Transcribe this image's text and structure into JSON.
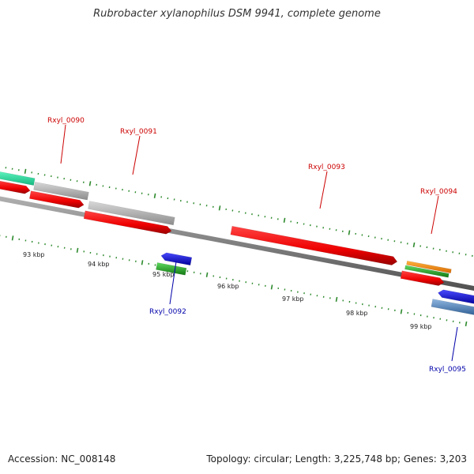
{
  "title": "Rubrobacter xylanophilus DSM 9941, complete genome",
  "footer": {
    "accession": "Accession: NC_008148",
    "summary": "Topology: circular; Length: 3,225,748 bp; Genes: 3,203"
  },
  "colors": {
    "forward_label": "#cc0000",
    "reverse_label": "#0000aa",
    "tick": "#2d8a2d",
    "backbone": "#808080"
  },
  "scale_labels": [
    "93 kbp",
    "94 kbp",
    "95 kbp",
    "96 kbp",
    "97 kbp",
    "98 kbp",
    "99 kbp"
  ],
  "gene_labels": {
    "g0090": "Rxyl_0090",
    "g0091": "Rxyl_0091",
    "g0092": "Rxyl_0092",
    "g0093": "Rxyl_0093",
    "g0094": "Rxyl_0094",
    "g0095": "Rxyl_0095"
  },
  "features": [
    {
      "name": "feature-teal-left",
      "color": "#2ee8a0",
      "strand": "+"
    },
    {
      "name": "feature-gray-left",
      "color": "#b5b5b5",
      "strand": "+"
    },
    {
      "name": "feature-gray-0091",
      "color": "#b5b5b5",
      "strand": "+"
    },
    {
      "name": "cds-red-left",
      "color": "#ee0000",
      "strand": "+"
    },
    {
      "name": "cds-red-0090",
      "color": "#ee0000",
      "strand": "+"
    },
    {
      "name": "cds-red-0091",
      "color": "#ee0000",
      "strand": "+"
    },
    {
      "name": "cds-red-0093",
      "color": "#ee0000",
      "strand": "+"
    },
    {
      "name": "feature-orange-0094",
      "color": "#ff8c00",
      "strand": "+"
    },
    {
      "name": "feature-green-0094",
      "color": "#22bb22",
      "strand": "+"
    },
    {
      "name": "cds-red-0094",
      "color": "#ee0000",
      "strand": "+"
    },
    {
      "name": "cds-blue-0092",
      "color": "#0000ee",
      "strand": "-"
    },
    {
      "name": "feature-green-0092",
      "color": "#22bb22",
      "strand": "-"
    },
    {
      "name": "cds-blue-0095",
      "color": "#0000ee",
      "strand": "-"
    },
    {
      "name": "feature-steelblue-0095",
      "color": "#4f86c6",
      "strand": "-"
    }
  ]
}
